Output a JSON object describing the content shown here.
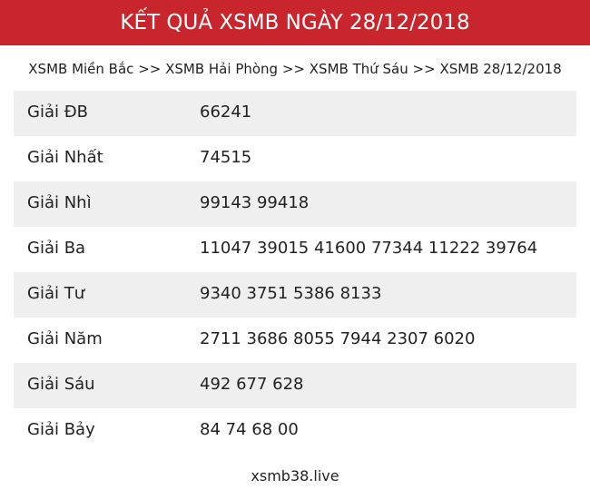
{
  "header": {
    "title": "KẾT QUẢ XSMB NGÀY 28/12/2018"
  },
  "breadcrumb": {
    "items": [
      "XSMB Miền Bắc",
      "XSMB Hải Phòng",
      "XSMB Thứ Sáu",
      "XSMB 28/12/2018"
    ],
    "separator": ">>"
  },
  "table": {
    "rows": [
      [
        "Giải ĐB",
        "66241"
      ],
      [
        "Giải Nhất",
        "74515"
      ],
      [
        "Giải Nhì",
        "99143 99418"
      ],
      [
        "Giải Ba",
        "11047 39015 41600 77344 11222 39764"
      ],
      [
        "Giải Tư",
        "9340 3751 5386 8133"
      ],
      [
        "Giải Năm",
        "2711 3686 8055 7944 2307 6020"
      ],
      [
        "Giải Sáu",
        "492 677 628"
      ],
      [
        "Giải Bảy",
        "84 74 68 00"
      ]
    ]
  },
  "footer": {
    "site": "xsmb38.live"
  }
}
